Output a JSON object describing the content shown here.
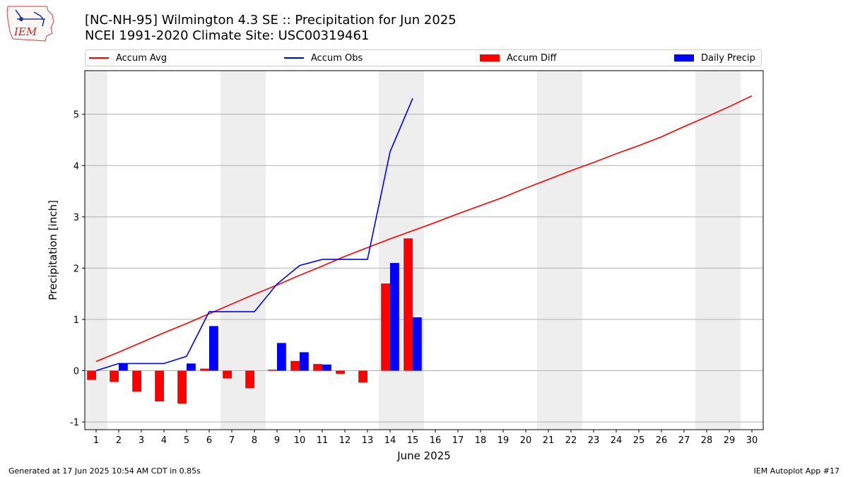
{
  "header": {
    "title_line1": "[NC-NH-95] Wilmington 4.3 SE :: Precipitation for Jun 2025",
    "title_line2": "NCEI 1991-2020 Climate Site: USC00319461"
  },
  "logo": {
    "text": "IEM",
    "icon": "iem-iowa-logo"
  },
  "footer": {
    "left": "Generated at 17 Jun 2025 10:54 AM CDT in 0.85s",
    "right": "IEM Autoplot App #17"
  },
  "legend": [
    {
      "label": "Accum Avg",
      "kind": "line",
      "color": "#ff0000"
    },
    {
      "label": "Accum Obs",
      "kind": "line",
      "color": "#0000ff"
    },
    {
      "label": "Accum Diff",
      "kind": "patch",
      "color": "#ff0000"
    },
    {
      "label": "Daily Precip",
      "kind": "patch",
      "color": "#0000ff"
    }
  ],
  "chart_data": {
    "type": "bar",
    "xlabel": "June 2025",
    "ylabel": "Precipitation [inch]",
    "xlim": [
      0.5,
      30.5
    ],
    "ylim": [
      -1.15,
      5.85
    ],
    "x_ticks": [
      1,
      2,
      3,
      4,
      5,
      6,
      7,
      8,
      9,
      10,
      11,
      12,
      13,
      14,
      15,
      16,
      17,
      18,
      19,
      20,
      21,
      22,
      23,
      24,
      25,
      26,
      27,
      28,
      29,
      30
    ],
    "y_ticks": [
      -1,
      0,
      1,
      2,
      3,
      4,
      5
    ],
    "grid": "horizontal",
    "weekend_shading": [
      [
        0.5,
        1.5
      ],
      [
        6.5,
        8.5
      ],
      [
        13.5,
        15.5
      ],
      [
        20.5,
        22.5
      ],
      [
        27.5,
        29.5
      ]
    ],
    "shade_color": "#eeeeee",
    "days": [
      1,
      2,
      3,
      4,
      5,
      6,
      7,
      8,
      9,
      10,
      11,
      12,
      13,
      14,
      15,
      16,
      17,
      18,
      19,
      20,
      21,
      22,
      23,
      24,
      25,
      26,
      27,
      28,
      29,
      30
    ],
    "series": [
      {
        "name": "Accum Avg",
        "kind": "line",
        "color": "#ff0000",
        "values": [
          0.18,
          0.36,
          0.55,
          0.74,
          0.92,
          1.11,
          1.3,
          1.49,
          1.67,
          1.86,
          2.04,
          2.23,
          2.4,
          2.57,
          2.73,
          2.89,
          3.06,
          3.22,
          3.38,
          3.56,
          3.73,
          3.9,
          4.06,
          4.23,
          4.39,
          4.56,
          4.76,
          4.95,
          5.15,
          5.36
        ]
      },
      {
        "name": "Accum Obs",
        "kind": "line",
        "color": "#0000ff",
        "values": [
          0.0,
          0.14,
          0.14,
          0.14,
          0.28,
          1.15,
          1.15,
          1.15,
          1.69,
          2.05,
          2.17,
          2.17,
          2.17,
          4.27,
          5.31
        ]
      },
      {
        "name": "Accum Diff",
        "kind": "bar",
        "color": "#ff0000",
        "values": [
          -0.18,
          -0.22,
          -0.41,
          -0.6,
          -0.64,
          0.04,
          -0.15,
          -0.34,
          0.02,
          0.19,
          0.13,
          -0.06,
          -0.23,
          1.7,
          2.58
        ]
      },
      {
        "name": "Daily Precip",
        "kind": "bar",
        "color": "#0000ff",
        "values": [
          0.0,
          0.14,
          0.0,
          0.0,
          0.14,
          0.87,
          0.0,
          0.0,
          0.54,
          0.36,
          0.12,
          0.0,
          0.0,
          2.1,
          1.04
        ]
      }
    ]
  }
}
